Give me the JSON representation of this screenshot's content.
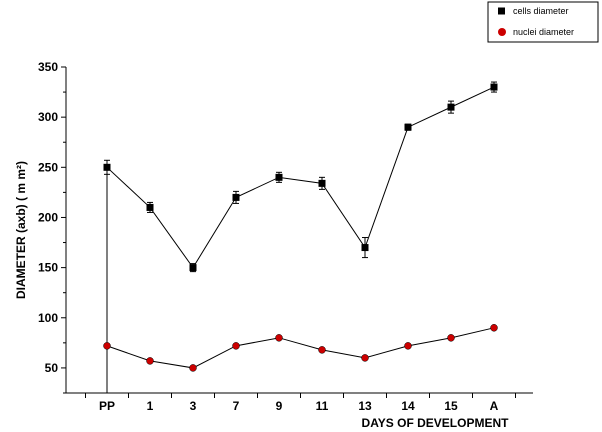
{
  "chart_data": {
    "type": "line",
    "categories": [
      "PP",
      "1",
      "3",
      "7",
      "9",
      "11",
      "13",
      "14",
      "15",
      "A"
    ],
    "xlabel": "DAYS OF DEVELOPMENT",
    "ylabel": "DIAMETER (axb)  ( m m²)",
    "ylim": [
      25,
      350
    ],
    "yticks": [
      50,
      100,
      150,
      200,
      250,
      300,
      350
    ],
    "grid": false,
    "legend_position": "top-right",
    "series": [
      {
        "name": "cells diameter",
        "marker": "square",
        "color": "#000000",
        "values": [
          250,
          210,
          150,
          220,
          240,
          234,
          170,
          290,
          310,
          330
        ],
        "errors": [
          7,
          5,
          4,
          6,
          5,
          6,
          10,
          3,
          6,
          5
        ]
      },
      {
        "name": "nuclei diameter",
        "marker": "circle",
        "color": "#cc0000",
        "values": [
          72,
          57,
          50,
          72,
          80,
          68,
          60,
          72,
          80,
          90
        ],
        "errors": [
          0,
          0,
          0,
          0,
          0,
          0,
          0,
          0,
          0,
          0
        ]
      }
    ]
  }
}
